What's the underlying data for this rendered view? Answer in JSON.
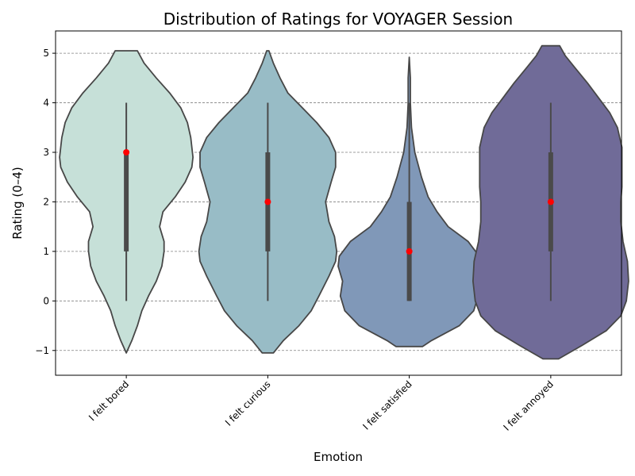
{
  "chart_data": {
    "type": "violin",
    "title": "Distribution of Ratings for VOYAGER Session",
    "xlabel": "Emotion",
    "ylabel": "Rating (0–4)",
    "ylim": [
      -1.5,
      5.45
    ],
    "yticks": [
      -1,
      0,
      1,
      2,
      3,
      4,
      5
    ],
    "grid": true,
    "categories": [
      "I felt bored",
      "I felt curious",
      "I felt satisfied",
      "I felt annoyed"
    ],
    "series": [
      {
        "category": "I felt bored",
        "color": "#c6e0d8",
        "min": 0,
        "q1": 1,
        "median": 3,
        "q3": 3,
        "max": 4,
        "density": [
          [
            -1.05,
            0.0
          ],
          [
            -0.8,
            0.05
          ],
          [
            -0.5,
            0.1
          ],
          [
            -0.2,
            0.14
          ],
          [
            0.1,
            0.2
          ],
          [
            0.4,
            0.27
          ],
          [
            0.7,
            0.32
          ],
          [
            1.0,
            0.34
          ],
          [
            1.2,
            0.34
          ],
          [
            1.5,
            0.3
          ],
          [
            1.8,
            0.33
          ],
          [
            2.1,
            0.44
          ],
          [
            2.4,
            0.53
          ],
          [
            2.7,
            0.59
          ],
          [
            2.9,
            0.6
          ],
          [
            3.1,
            0.59
          ],
          [
            3.3,
            0.58
          ],
          [
            3.6,
            0.55
          ],
          [
            3.9,
            0.49
          ],
          [
            4.2,
            0.39
          ],
          [
            4.5,
            0.27
          ],
          [
            4.8,
            0.16
          ],
          [
            5.05,
            0.1
          ]
        ]
      },
      {
        "category": "I felt curious",
        "color": "#98bcc6",
        "min": 0,
        "q1": 1,
        "median": 2,
        "q3": 3,
        "max": 4,
        "density": [
          [
            -1.05,
            0.05
          ],
          [
            -0.8,
            0.14
          ],
          [
            -0.5,
            0.28
          ],
          [
            -0.2,
            0.39
          ],
          [
            0.1,
            0.46
          ],
          [
            0.5,
            0.55
          ],
          [
            0.8,
            0.61
          ],
          [
            1.0,
            0.62
          ],
          [
            1.3,
            0.6
          ],
          [
            1.6,
            0.55
          ],
          [
            2.0,
            0.52
          ],
          [
            2.4,
            0.57
          ],
          [
            2.7,
            0.61
          ],
          [
            3.0,
            0.61
          ],
          [
            3.3,
            0.55
          ],
          [
            3.6,
            0.44
          ],
          [
            3.9,
            0.31
          ],
          [
            4.2,
            0.18
          ],
          [
            4.5,
            0.11
          ],
          [
            4.8,
            0.05
          ],
          [
            5.05,
            0.01
          ]
        ]
      },
      {
        "category": "I felt satisfied",
        "color": "#8098b8",
        "min": 0,
        "q1": 0,
        "median": 1,
        "q3": 2,
        "max": 4,
        "density": [
          [
            -0.92,
            0.12
          ],
          [
            -0.8,
            0.2
          ],
          [
            -0.5,
            0.45
          ],
          [
            -0.2,
            0.58
          ],
          [
            0.1,
            0.62
          ],
          [
            0.4,
            0.6
          ],
          [
            0.7,
            0.64
          ],
          [
            0.9,
            0.63
          ],
          [
            1.2,
            0.53
          ],
          [
            1.5,
            0.35
          ],
          [
            1.8,
            0.25
          ],
          [
            2.1,
            0.17
          ],
          [
            2.5,
            0.11
          ],
          [
            3.0,
            0.05
          ],
          [
            3.5,
            0.02
          ],
          [
            4.0,
            0.01
          ],
          [
            4.5,
            0.01
          ],
          [
            4.92,
            0.0
          ]
        ]
      },
      {
        "category": "I felt annoyed",
        "color": "#706b98",
        "min": 0,
        "q1": 1,
        "median": 2,
        "q3": 3,
        "max": 4,
        "density": [
          [
            -1.17,
            0.07
          ],
          [
            -0.9,
            0.28
          ],
          [
            -0.6,
            0.5
          ],
          [
            -0.3,
            0.63
          ],
          [
            0.0,
            0.68
          ],
          [
            0.4,
            0.7
          ],
          [
            0.8,
            0.69
          ],
          [
            1.2,
            0.65
          ],
          [
            1.6,
            0.63
          ],
          [
            2.0,
            0.63
          ],
          [
            2.3,
            0.64
          ],
          [
            2.7,
            0.64
          ],
          [
            3.1,
            0.64
          ],
          [
            3.5,
            0.6
          ],
          [
            3.8,
            0.53
          ],
          [
            4.1,
            0.43
          ],
          [
            4.4,
            0.33
          ],
          [
            4.7,
            0.22
          ],
          [
            4.95,
            0.13
          ],
          [
            5.15,
            0.08
          ]
        ]
      }
    ]
  }
}
